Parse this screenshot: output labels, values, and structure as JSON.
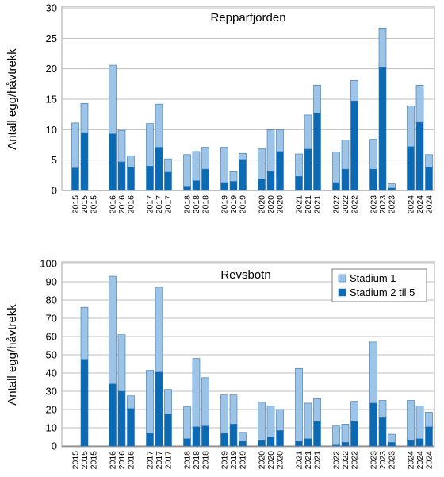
{
  "colors": {
    "stadium1": "#9DC3E6",
    "stadium2": "#0A6AB4",
    "edge": "#2E75B6",
    "grid": "#BFBFBF"
  },
  "chart_data": [
    {
      "type": "bar",
      "stacked": true,
      "title": "Repparfjorden",
      "ylabel": "Antall egg/håvtrekk",
      "ylim": [
        0,
        30
      ],
      "yticks": [
        0,
        5,
        10,
        15,
        20,
        25,
        30
      ],
      "grid": true,
      "categories": [
        "2015",
        "2015",
        "2015",
        "2016",
        "2016",
        "2016",
        "2017",
        "2017",
        "2017",
        "2018",
        "2018",
        "2018",
        "2019",
        "2019",
        "2019",
        "2020",
        "2020",
        "2020",
        "2021",
        "2021",
        "2021",
        "2022",
        "2022",
        "2022",
        "2023",
        "2023",
        "2023",
        "2024",
        "2024",
        "2024"
      ],
      "series": [
        {
          "name": "Stadium 2 til 5",
          "values": [
            3.7,
            9.5,
            0,
            9.3,
            4.7,
            3.8,
            4.0,
            7.1,
            3.0,
            0.7,
            1.6,
            3.5,
            1.3,
            1.5,
            5.1,
            1.9,
            3.1,
            6.4,
            2.3,
            6.8,
            12.7,
            1.3,
            3.5,
            14.7,
            3.5,
            20.2,
            0.4,
            7.2,
            11.2,
            3.8
          ]
        },
        {
          "name": "Stadium 1",
          "values": [
            7.4,
            4.8,
            0,
            11.3,
            5.2,
            1.9,
            7.0,
            7.1,
            2.2,
            5.2,
            4.8,
            3.6,
            5.8,
            1.6,
            1.0,
            5.0,
            6.9,
            3.6,
            3.7,
            5.6,
            4.6,
            5.0,
            4.8,
            3.4,
            4.9,
            6.5,
            0.7,
            6.7,
            6.1,
            2.1
          ]
        }
      ]
    },
    {
      "type": "bar",
      "stacked": true,
      "title": "Revsbotn",
      "ylabel": "Antall egg/håvtrekk",
      "ylim": [
        0,
        100
      ],
      "yticks": [
        0,
        10,
        20,
        30,
        40,
        50,
        60,
        70,
        80,
        90,
        100
      ],
      "grid": true,
      "legend": "top-right",
      "categories": [
        "2015",
        "2015",
        "2015",
        "2016",
        "2016",
        "2016",
        "2017",
        "2017",
        "2017",
        "2018",
        "2018",
        "2018",
        "2019",
        "2019",
        "2019",
        "2020",
        "2020",
        "2020",
        "2021",
        "2021",
        "2021",
        "2022",
        "2022",
        "2022",
        "2023",
        "2023",
        "2023",
        "2024",
        "2024",
        "2024"
      ],
      "series": [
        {
          "name": "Stadium 2 til 5",
          "values": [
            0,
            47.5,
            0,
            34,
            30,
            20.5,
            7,
            40.5,
            17.5,
            4,
            10.5,
            11,
            7,
            12,
            2.5,
            3,
            5,
            8.5,
            2.5,
            4,
            13.5,
            0.5,
            2,
            13.5,
            23.5,
            15.5,
            2,
            3,
            4,
            10.5
          ]
        },
        {
          "name": "Stadium 1",
          "values": [
            0,
            28.5,
            0,
            59,
            31,
            7,
            34.5,
            46.5,
            13.5,
            17.5,
            37.5,
            26.5,
            21,
            16,
            5,
            21,
            17,
            11.5,
            40,
            19.5,
            12.5,
            10.5,
            10,
            11,
            33.5,
            9.5,
            4.5,
            22,
            18,
            8
          ]
        }
      ]
    }
  ]
}
